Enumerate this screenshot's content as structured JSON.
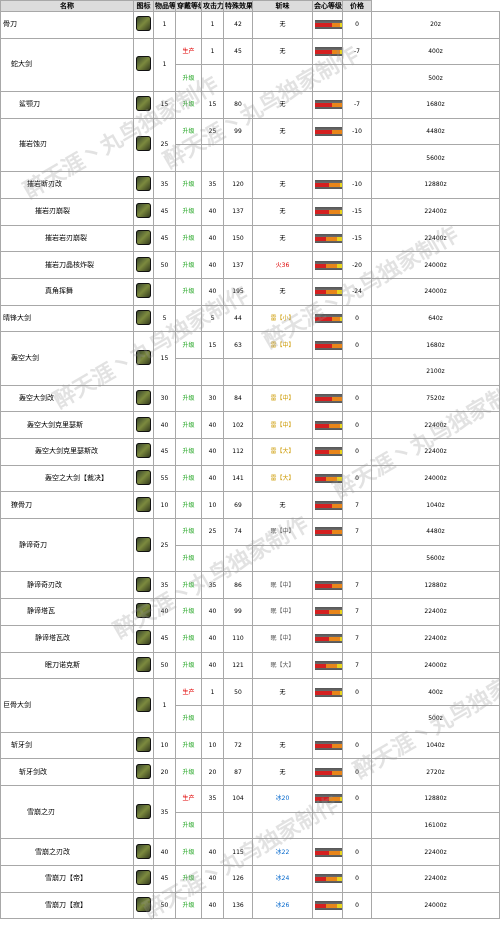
{
  "headers": [
    "名称",
    "图标",
    "物品等级",
    "穿戴等级",
    "攻击力",
    "特殊效果",
    "斩味",
    "会心等级",
    "价格"
  ],
  "colors": {
    "header_bg": "#dcdcdc",
    "production": "#e00000",
    "upgrade": "#1aa21a"
  },
  "sharpness_colors": [
    "#d42020",
    "#e8851a",
    "#e9d41e",
    "#3cbf2c",
    "#2a5bd7",
    "#ffffff"
  ],
  "watermark": "醉天涯丶丸鸟独家制作",
  "rows": [
    {
      "name": "骨刀",
      "indent": 0,
      "rarity": "1",
      "subs": [
        {
          "type": "",
          "lvl": "1",
          "atk": "42",
          "eff": "无",
          "mat": "",
          "sharp": [
            0.3,
            0.15,
            0.1,
            0,
            0,
            0
          ],
          "aff": "0",
          "price": "20z"
        }
      ]
    },
    {
      "name": "蛇大剑",
      "indent": 1,
      "rarity": "1",
      "subs": [
        {
          "type": "生产",
          "lvl": "1",
          "atk": "45",
          "eff": "无",
          "mat": "",
          "sharp": [
            0.3,
            0.15,
            0.1,
            0,
            0,
            0
          ],
          "aff": "-7",
          "price": "400z"
        },
        {
          "type": "升级",
          "lvl": "",
          "atk": "",
          "eff": "",
          "mat": "",
          "sharp": null,
          "aff": "",
          "price": "500z"
        }
      ]
    },
    {
      "name": "鲨颚刀",
      "indent": 2,
      "rarity": "15",
      "subs": [
        {
          "type": "升级",
          "lvl": "15",
          "atk": "80",
          "eff": "无",
          "mat": "",
          "sharp": [
            0.3,
            0.2,
            0.15,
            0.1,
            0,
            0
          ],
          "aff": "-7",
          "price": "1680z"
        }
      ]
    },
    {
      "name": "摧岩蚀刃",
      "indent": 2,
      "rarity": "25",
      "subs": [
        {
          "type": "升级",
          "lvl": "25",
          "atk": "99",
          "eff": "无",
          "mat": "",
          "sharp": [
            0.3,
            0.2,
            0.15,
            0.1,
            0,
            0
          ],
          "aff": "-10",
          "price": "4480z"
        },
        {
          "type": "",
          "lvl": "",
          "atk": "",
          "eff": "",
          "mat": "",
          "sharp": null,
          "aff": "",
          "price": "5600z"
        }
      ]
    },
    {
      "name": "摧岩断刃改",
      "indent": 3,
      "rarity": "35",
      "subs": [
        {
          "type": "升级",
          "lvl": "35",
          "atk": "120",
          "eff": "无",
          "mat": "",
          "sharp": [
            0.25,
            0.2,
            0.15,
            0.15,
            0.05,
            0
          ],
          "aff": "-10",
          "price": "12880z"
        }
      ]
    },
    {
      "name": "摧岩刃崩裂",
      "indent": 4,
      "rarity": "45",
      "subs": [
        {
          "type": "升级",
          "lvl": "40",
          "atk": "137",
          "eff": "无",
          "mat": "",
          "sharp": [
            0.25,
            0.2,
            0.15,
            0.15,
            0.05,
            0
          ],
          "aff": "-15",
          "price": "22400z"
        }
      ]
    },
    {
      "name": "摧岩岩刃崩裂",
      "indent": 5,
      "rarity": "45",
      "subs": [
        {
          "type": "升级",
          "lvl": "40",
          "atk": "150",
          "eff": "无",
          "mat": "",
          "sharp": [
            0.2,
            0.2,
            0.15,
            0.15,
            0.1,
            0
          ],
          "aff": "-15",
          "price": "22400z"
        }
      ]
    },
    {
      "name": "摧岩刀晶核炸裂",
      "indent": 5,
      "rarity": "50",
      "subs": [
        {
          "type": "升级",
          "lvl": "40",
          "atk": "137",
          "eff": "火36",
          "mat": "",
          "sharp": [
            0.2,
            0.2,
            0.15,
            0.15,
            0.1,
            0
          ],
          "aff": "-20",
          "price": "24000z"
        }
      ]
    },
    {
      "name": "真角挥舞",
      "indent": 5,
      "rarity": "",
      "subs": [
        {
          "type": "升级",
          "lvl": "40",
          "atk": "195",
          "eff": "无",
          "mat": "",
          "sharp": [
            0.2,
            0.2,
            0.15,
            0.15,
            0.1,
            0.03
          ],
          "aff": "-24",
          "price": "24000z"
        }
      ]
    },
    {
      "name": "晴锋大剑",
      "indent": 0,
      "rarity": "5",
      "subs": [
        {
          "type": "",
          "lvl": "5",
          "atk": "44",
          "eff": "雷【小】",
          "mat": "",
          "sharp": [
            0.3,
            0.15,
            0.1,
            0,
            0,
            0
          ],
          "aff": "0",
          "price": "640z"
        }
      ]
    },
    {
      "name": "轰空大剑",
      "indent": 1,
      "rarity": "15",
      "subs": [
        {
          "type": "升级",
          "lvl": "15",
          "atk": "63",
          "eff": "雷【中】",
          "mat": "",
          "sharp": [
            0.3,
            0.2,
            0.15,
            0,
            0,
            0
          ],
          "aff": "0",
          "price": "1680z"
        },
        {
          "type": "",
          "lvl": "",
          "atk": "",
          "eff": "",
          "mat": "",
          "sharp": null,
          "aff": "",
          "price": "2100z"
        }
      ]
    },
    {
      "name": "轰空大剑改",
      "indent": 2,
      "rarity": "30",
      "subs": [
        {
          "type": "升级",
          "lvl": "30",
          "atk": "84",
          "eff": "雷【中】",
          "mat": "",
          "sharp": [
            0.3,
            0.2,
            0.15,
            0.1,
            0,
            0
          ],
          "aff": "0",
          "price": "7520z"
        }
      ]
    },
    {
      "name": "轰空大剑克里瑟斯",
      "indent": 3,
      "rarity": "40",
      "subs": [
        {
          "type": "升级",
          "lvl": "40",
          "atk": "102",
          "eff": "雷【中】",
          "mat": "",
          "sharp": [
            0.25,
            0.2,
            0.15,
            0.15,
            0.05,
            0
          ],
          "aff": "0",
          "price": "22400z"
        }
      ]
    },
    {
      "name": "轰空大剑克里瑟斯改",
      "indent": 4,
      "rarity": "45",
      "subs": [
        {
          "type": "升级",
          "lvl": "40",
          "atk": "112",
          "eff": "雷【大】",
          "mat": "",
          "sharp": [
            0.25,
            0.2,
            0.15,
            0.15,
            0.05,
            0
          ],
          "aff": "0",
          "price": "22400z"
        }
      ]
    },
    {
      "name": "轰空之大剑【裁决】",
      "indent": 5,
      "rarity": "55",
      "subs": [
        {
          "type": "升级",
          "lvl": "40",
          "atk": "141",
          "eff": "雷【大】",
          "mat": "",
          "sharp": [
            0.2,
            0.2,
            0.15,
            0.15,
            0.1,
            0.03
          ],
          "aff": "0",
          "price": "24000z"
        }
      ]
    },
    {
      "name": "獠骨刀",
      "indent": 1,
      "rarity": "10",
      "subs": [
        {
          "type": "升级",
          "lvl": "10",
          "atk": "69",
          "eff": "无",
          "mat": "",
          "sharp": [
            0.3,
            0.2,
            0.1,
            0,
            0,
            0
          ],
          "aff": "7",
          "price": "1040z"
        }
      ]
    },
    {
      "name": "静谛奇刀",
      "indent": 2,
      "rarity": "25",
      "subs": [
        {
          "type": "升级",
          "lvl": "25",
          "atk": "74",
          "eff": "眠【中】",
          "mat": "",
          "sharp": [
            0.3,
            0.2,
            0.15,
            0,
            0,
            0
          ],
          "aff": "7",
          "price": "4480z"
        },
        {
          "type": "升级",
          "lvl": "",
          "atk": "",
          "eff": "",
          "mat": "",
          "sharp": null,
          "aff": "",
          "price": "5600z"
        }
      ]
    },
    {
      "name": "静谛奇刃改",
      "indent": 3,
      "rarity": "35",
      "subs": [
        {
          "type": "升级",
          "lvl": "35",
          "atk": "86",
          "eff": "眠【中】",
          "mat": "",
          "sharp": [
            0.3,
            0.2,
            0.15,
            0.1,
            0,
            0
          ],
          "aff": "7",
          "price": "12880z"
        }
      ]
    },
    {
      "name": "静谛塔瓦",
      "indent": 3,
      "rarity": "40",
      "subs": [
        {
          "type": "升级",
          "lvl": "40",
          "atk": "99",
          "eff": "眠【中】",
          "mat": "",
          "sharp": [
            0.25,
            0.2,
            0.15,
            0.15,
            0.05,
            0
          ],
          "aff": "7",
          "price": "22400z"
        }
      ]
    },
    {
      "name": "静谛塔瓦改",
      "indent": 4,
      "rarity": "45",
      "subs": [
        {
          "type": "升级",
          "lvl": "40",
          "atk": "110",
          "eff": "眠【中】",
          "mat": "",
          "sharp": [
            0.25,
            0.2,
            0.15,
            0.15,
            0.05,
            0
          ],
          "aff": "7",
          "price": "22400z"
        }
      ]
    },
    {
      "name": "眠刀诺克斯",
      "indent": 5,
      "rarity": "50",
      "subs": [
        {
          "type": "升级",
          "lvl": "40",
          "atk": "121",
          "eff": "眠【大】",
          "mat": "",
          "sharp": [
            0.2,
            0.2,
            0.15,
            0.15,
            0.1,
            0.03
          ],
          "aff": "7",
          "price": "24000z"
        }
      ]
    },
    {
      "name": "巨骨大剑",
      "indent": 0,
      "rarity": "1",
      "subs": [
        {
          "type": "生产",
          "lvl": "1",
          "atk": "50",
          "eff": "无",
          "mat": "",
          "sharp": [
            0.3,
            0.15,
            0.1,
            0,
            0,
            0
          ],
          "aff": "0",
          "price": "400z"
        },
        {
          "type": "升级",
          "lvl": "",
          "atk": "",
          "eff": "",
          "mat": "",
          "sharp": null,
          "aff": "",
          "price": "500z"
        }
      ]
    },
    {
      "name": "斩牙剑",
      "indent": 1,
      "rarity": "10",
      "subs": [
        {
          "type": "升级",
          "lvl": "10",
          "atk": "72",
          "eff": "无",
          "mat": "",
          "sharp": [
            0.3,
            0.2,
            0.1,
            0,
            0,
            0
          ],
          "aff": "0",
          "price": "1040z"
        }
      ]
    },
    {
      "name": "斩牙剑改",
      "indent": 2,
      "rarity": "20",
      "subs": [
        {
          "type": "升级",
          "lvl": "20",
          "atk": "87",
          "eff": "无",
          "mat": "",
          "sharp": [
            0.3,
            0.2,
            0.15,
            0,
            0,
            0
          ],
          "aff": "0",
          "price": "2720z"
        }
      ]
    },
    {
      "name": "雪崩之刃",
      "indent": 3,
      "rarity": "35",
      "subs": [
        {
          "type": "生产",
          "lvl": "35",
          "atk": "104",
          "eff": "冰20",
          "mat": "",
          "sharp": [
            0.25,
            0.2,
            0.15,
            0.15,
            0.05,
            0
          ],
          "aff": "0",
          "price": "12880z"
        },
        {
          "type": "升级",
          "lvl": "",
          "atk": "",
          "eff": "",
          "mat": "",
          "sharp": null,
          "aff": "",
          "price": "16100z"
        }
      ]
    },
    {
      "name": "雪崩之刃改",
      "indent": 4,
      "rarity": "40",
      "subs": [
        {
          "type": "升级",
          "lvl": "40",
          "atk": "115",
          "eff": "冰22",
          "mat": "",
          "sharp": [
            0.25,
            0.2,
            0.15,
            0.15,
            0.05,
            0
          ],
          "aff": "0",
          "price": "22400z"
        }
      ]
    },
    {
      "name": "雪崩刀【帝】",
      "indent": 5,
      "rarity": "45",
      "subs": [
        {
          "type": "升级",
          "lvl": "40",
          "atk": "126",
          "eff": "冰24",
          "mat": "",
          "sharp": [
            0.2,
            0.2,
            0.15,
            0.15,
            0.1,
            0.03
          ],
          "aff": "0",
          "price": "22400z"
        }
      ]
    },
    {
      "name": "雪崩刀【寂】",
      "indent": 5,
      "rarity": "50",
      "subs": [
        {
          "type": "升级",
          "lvl": "40",
          "atk": "136",
          "eff": "冰26",
          "mat": "",
          "sharp": [
            0.2,
            0.2,
            0.15,
            0.15,
            0.1,
            0.03
          ],
          "aff": "0",
          "price": "24000z"
        }
      ]
    }
  ]
}
